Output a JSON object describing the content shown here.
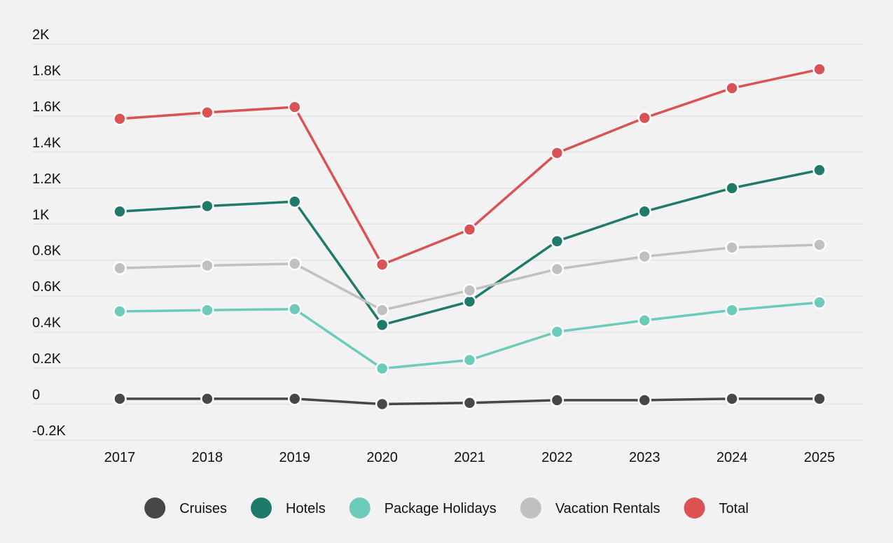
{
  "chart_data": {
    "type": "line",
    "title": "",
    "xlabel": "",
    "ylabel": "",
    "x": [
      "2017",
      "2018",
      "2019",
      "2020",
      "2021",
      "2022",
      "2023",
      "2024",
      "2025"
    ],
    "ylim": [
      -200,
      2000
    ],
    "yticks": [
      -200,
      0,
      200,
      400,
      600,
      800,
      1000,
      1200,
      1400,
      1600,
      1800,
      2000
    ],
    "ytick_labels": [
      "-0.2K",
      "0",
      "0.2K",
      "0.4K",
      "0.6K",
      "0.8K",
      "1K",
      "1.2K",
      "1.4K",
      "1.6K",
      "1.8K",
      "2K"
    ],
    "grid": true,
    "legend_position": "bottom",
    "series": [
      {
        "name": "Cruises",
        "color": "#474747",
        "values": [
          30,
          30,
          30,
          0,
          7,
          22,
          22,
          30,
          30
        ]
      },
      {
        "name": "Hotels",
        "color": "#1f7a69",
        "values": [
          1070,
          1100,
          1125,
          440,
          570,
          905,
          1070,
          1200,
          1300
        ]
      },
      {
        "name": "Package Holidays",
        "color": "#6ccbb9",
        "values": [
          515,
          522,
          528,
          198,
          245,
          402,
          465,
          522,
          565
        ]
      },
      {
        "name": "Vacation Rentals",
        "color": "#c0c0c0",
        "values": [
          755,
          770,
          780,
          522,
          632,
          750,
          820,
          870,
          885
        ]
      },
      {
        "name": "Total",
        "color": "#db5255",
        "values": [
          1585,
          1620,
          1650,
          775,
          970,
          1395,
          1590,
          1755,
          1860
        ]
      }
    ]
  }
}
